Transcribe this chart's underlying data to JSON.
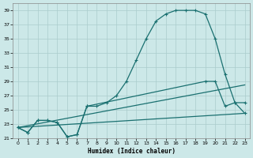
{
  "xlabel": "Humidex (Indice chaleur)",
  "bg_color": "#cce8e8",
  "grid_color": "#aacccc",
  "line_color": "#1a7070",
  "xlim": [
    -0.5,
    23.5
  ],
  "ylim": [
    21,
    40
  ],
  "yticks": [
    21,
    23,
    25,
    27,
    29,
    31,
    33,
    35,
    37,
    39
  ],
  "xticks": [
    0,
    1,
    2,
    3,
    4,
    5,
    6,
    7,
    8,
    9,
    10,
    11,
    12,
    13,
    14,
    15,
    16,
    17,
    18,
    19,
    20,
    21,
    22,
    23
  ],
  "curve_main_x": [
    0,
    1,
    2,
    3,
    4,
    5,
    6,
    7,
    8,
    9,
    10,
    11,
    12,
    13,
    14,
    15,
    16,
    17,
    18,
    19,
    20,
    21,
    22,
    23
  ],
  "curve_main_y": [
    22.5,
    21.8,
    23.5,
    23.5,
    23.2,
    21.2,
    21.5,
    25.5,
    25.5,
    26.0,
    27.0,
    29.0,
    32.0,
    35.0,
    37.5,
    38.5,
    39.0,
    39.0,
    39.0,
    38.5,
    35.0,
    30.0,
    26.0,
    26.0
  ],
  "curve_line1_x": [
    0,
    23
  ],
  "curve_line1_y": [
    22.5,
    24.5
  ],
  "curve_line2_x": [
    0,
    23
  ],
  "curve_line2_y": [
    22.5,
    28.5
  ],
  "curve_lower_x": [
    0,
    1,
    2,
    3,
    4,
    5,
    6,
    7,
    19,
    20,
    21,
    22,
    23
  ],
  "curve_lower_y": [
    22.5,
    21.8,
    23.5,
    23.5,
    23.2,
    21.2,
    21.5,
    25.5,
    29.0,
    29.0,
    25.5,
    26.0,
    24.5
  ]
}
